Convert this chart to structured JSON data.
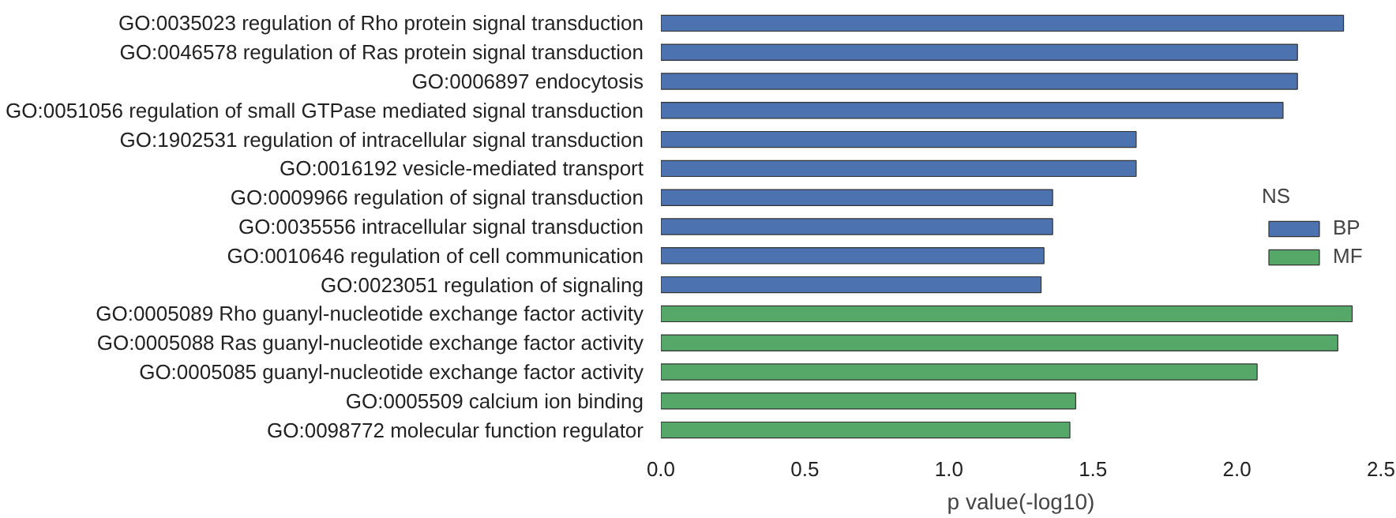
{
  "chart_data": {
    "type": "bar",
    "orientation": "horizontal",
    "xlabel": "p value(-log10)",
    "legend_title": "NS",
    "legend": "right",
    "grid": false,
    "categories": [
      "GO:0035023 regulation of Rho protein signal transduction",
      "GO:0046578 regulation of Ras protein signal transduction",
      "GO:0006897 endocytosis",
      "GO:0051056 regulation of small GTPase mediated signal transduction",
      "GO:1902531 regulation of intracellular signal transduction",
      "GO:0016192 vesicle-mediated transport",
      "GO:0009966 regulation of signal transduction",
      "GO:0035556 intracellular signal transduction",
      "GO:0010646 regulation of cell communication",
      "GO:0023051 regulation of signaling",
      "GO:0005089 Rho guanyl-nucleotide exchange factor activity",
      "GO:0005088 Ras guanyl-nucleotide exchange factor activity",
      "GO:0005085 guanyl-nucleotide exchange factor activity",
      "GO:0005509 calcium ion binding",
      "GO:0098772 molecular function regulator"
    ],
    "series": [
      {
        "name": "BP",
        "color": "#4c72b0",
        "values": [
          2.37,
          2.21,
          2.21,
          2.16,
          1.65,
          1.65,
          1.36,
          1.36,
          1.33,
          1.32,
          null,
          null,
          null,
          null,
          null
        ]
      },
      {
        "name": "MF",
        "color": "#55a868",
        "values": [
          null,
          null,
          null,
          null,
          null,
          null,
          null,
          null,
          null,
          null,
          2.4,
          2.35,
          2.07,
          1.44,
          1.42
        ]
      }
    ],
    "xlim": [
      0,
      2.5
    ],
    "xticks": [
      {
        "value": 0,
        "label": "0.0"
      },
      {
        "value": 0.5,
        "label": "0.5"
      },
      {
        "value": 1,
        "label": "1.0"
      },
      {
        "value": 1.5,
        "label": "1.5"
      },
      {
        "value": 2,
        "label": "2.0"
      },
      {
        "value": 2.5,
        "label": "2.5"
      }
    ]
  }
}
